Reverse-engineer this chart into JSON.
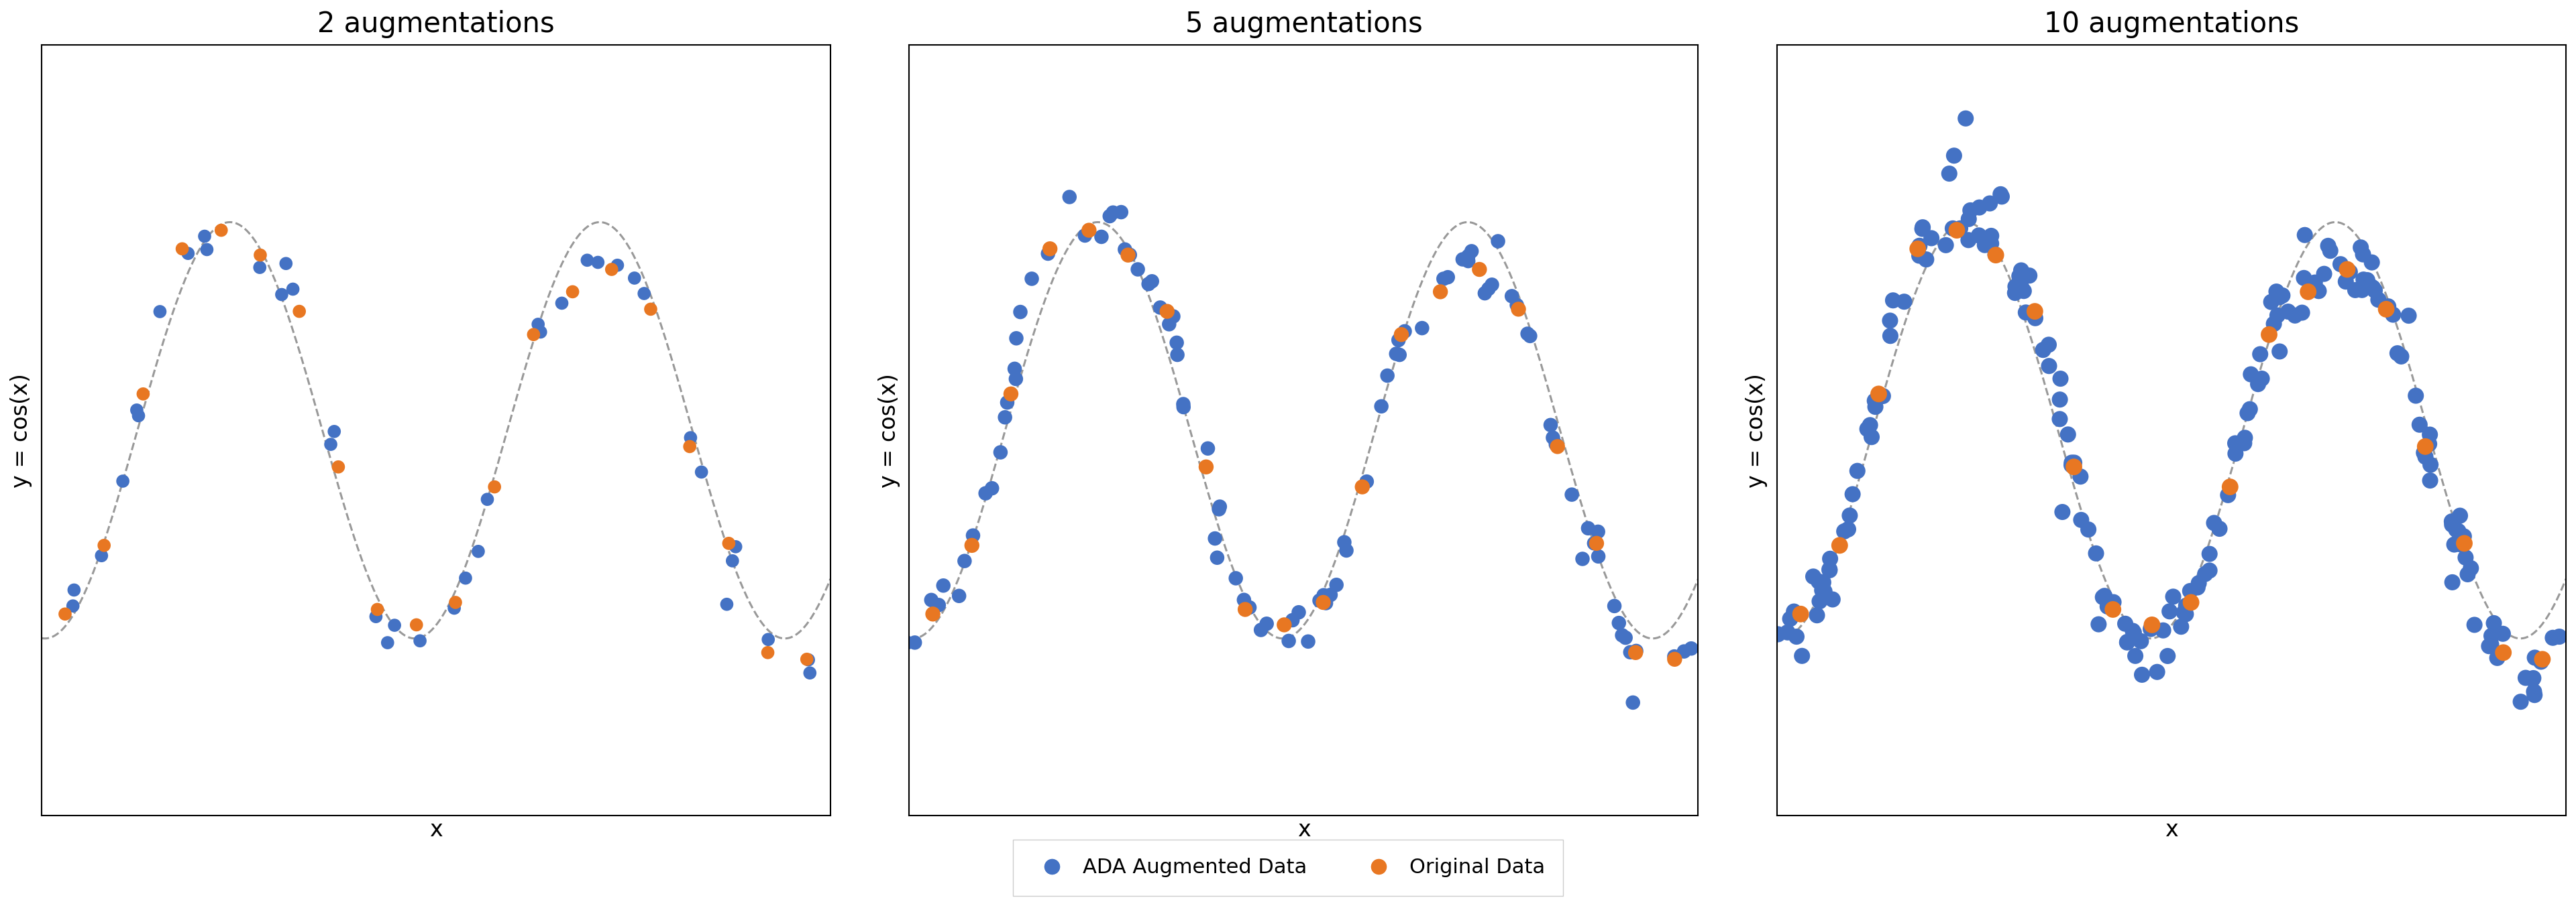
{
  "titles": [
    "2 augmentations",
    "5 augmentations",
    "10 augmentations"
  ],
  "n_augmentations": [
    2,
    5,
    10
  ],
  "xlabel": "x",
  "ylabel": "y = cos(x)",
  "curve_color": "#999999",
  "aug_color": "#4472c4",
  "orig_color": "#e87722",
  "legend_aug_label": "ADA Augmented Data",
  "legend_orig_label": "Original Data",
  "background_color": "#ffffff",
  "title_fontsize": 30,
  "label_fontsize": 24,
  "legend_fontsize": 22,
  "marker_size_orig": [
    200,
    260,
    320
  ],
  "marker_size_aug": [
    200,
    240,
    300
  ],
  "n_orig_points": 20,
  "x_range": [
    -3.2,
    10.2
  ],
  "y_range": [
    -1.85,
    1.85
  ],
  "random_seed": 42,
  "noise_level": 0.12,
  "aug_spread": [
    0.28,
    0.32,
    0.38
  ],
  "aug_perp_spread": [
    0.04,
    0.04,
    0.05
  ]
}
